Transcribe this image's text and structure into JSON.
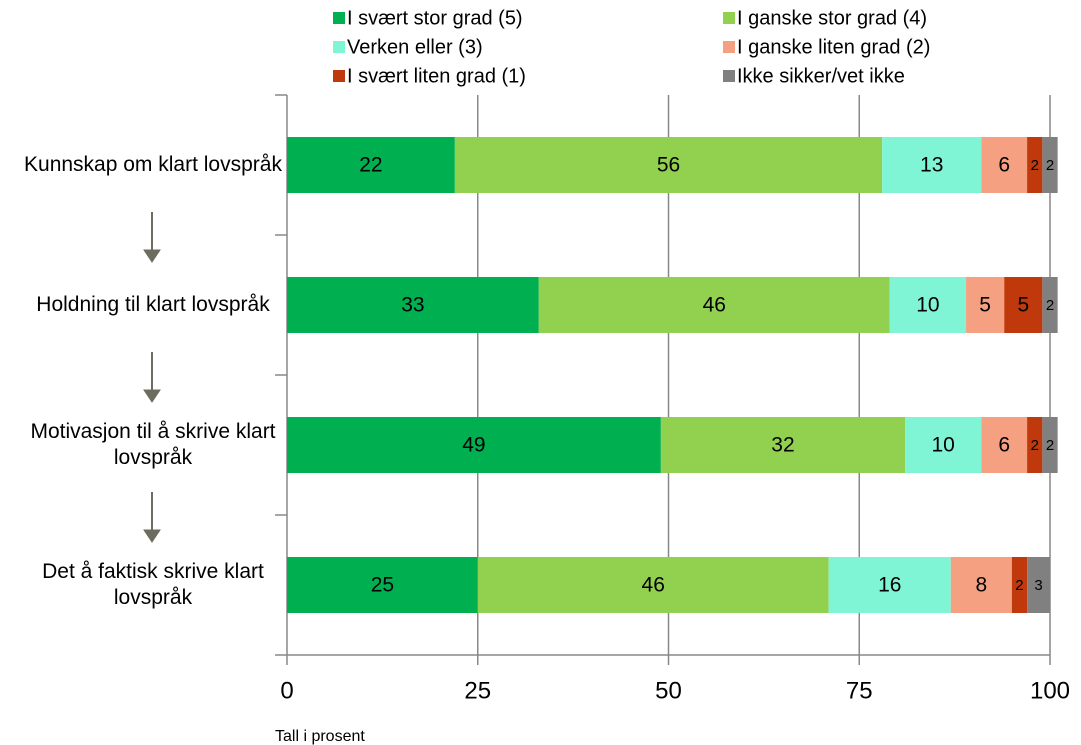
{
  "chart_data": {
    "type": "stacked_barh",
    "categories": [
      "Kunnskap om klart lovspråk",
      "Holdning til klart lovspråk",
      "Motivasjon til å skrive klart lovspråk",
      "Det å faktisk skrive klart lovspråk"
    ],
    "series": [
      {
        "name": "I svært stor grad (5)",
        "color": "#00b050",
        "values": [
          22,
          33,
          49,
          25
        ]
      },
      {
        "name": "I ganske stor grad (4)",
        "color": "#92d050",
        "values": [
          56,
          46,
          32,
          46
        ]
      },
      {
        "name": "Verken eller (3)",
        "color": "#80f5d5",
        "values": [
          13,
          10,
          10,
          16
        ]
      },
      {
        "name": "I ganske liten grad (2)",
        "color": "#f5a080",
        "values": [
          6,
          5,
          6,
          8
        ]
      },
      {
        "name": "I svært liten grad (1)",
        "color": "#c0390c",
        "values": [
          2,
          5,
          2,
          2
        ]
      },
      {
        "name": "Ikke sikker/vet ikke",
        "color": "#808080",
        "values": [
          2,
          2,
          2,
          3
        ]
      }
    ],
    "xlim": [
      0,
      100
    ],
    "xticks": [
      0,
      25,
      50,
      75,
      100
    ],
    "grid": true,
    "xlabel": "Tall i prosent",
    "legend": "top"
  }
}
